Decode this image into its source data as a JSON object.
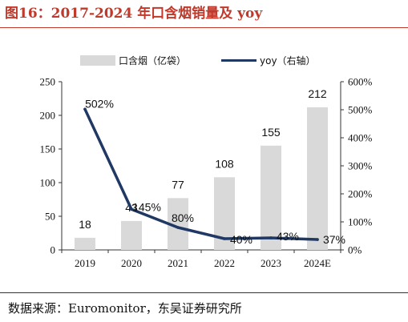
{
  "figure": {
    "title": "图16：2017-2024 年口含烟销量及 yoy",
    "source": "数据来源：Euromonitor，东吴证券研究所"
  },
  "colors": {
    "title": "#c0392b",
    "bar": "#d9d9d9",
    "line": "#1f3864",
    "axis": "#333333"
  },
  "chart_data": {
    "type": "bar",
    "categories": [
      "2019",
      "2020",
      "2021",
      "2022",
      "2023",
      "2024E"
    ],
    "series": [
      {
        "name": "口含烟（亿袋）",
        "type": "bar",
        "axis": "left",
        "values": [
          18,
          43,
          77,
          108,
          155,
          212
        ],
        "labels": [
          "18",
          "43",
          "77",
          "108",
          "155",
          "212"
        ]
      },
      {
        "name": "yoy（右轴）",
        "type": "line",
        "axis": "right",
        "values": [
          502,
          145,
          80,
          40,
          43,
          37
        ],
        "labels": [
          "502%",
          "145%",
          "80%",
          "40%",
          "43%",
          "37%"
        ]
      }
    ],
    "y_left": {
      "ylim": [
        0,
        250
      ],
      "ticks": [
        "0",
        "50",
        "100",
        "150",
        "200",
        "250"
      ]
    },
    "y_right": {
      "ylim": [
        0,
        600
      ],
      "ticks": [
        "0%",
        "100%",
        "200%",
        "300%",
        "400%",
        "500%",
        "600%"
      ]
    },
    "legend_position": "top",
    "grid": false
  }
}
